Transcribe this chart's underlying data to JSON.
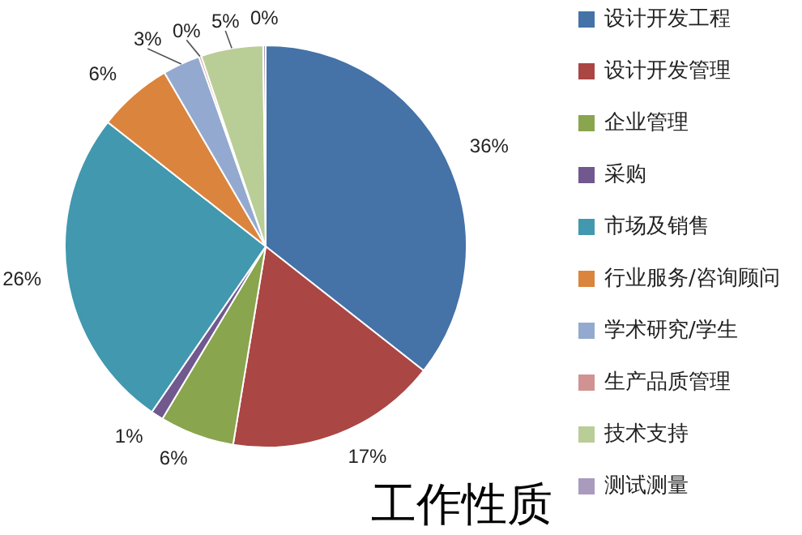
{
  "chart_data": {
    "type": "pie",
    "title": "工作性质",
    "categories": [
      "设计开发工程",
      "设计开发管理",
      "企业管理",
      "采购",
      "市场及销售",
      "行业服务/咨询顾问",
      "学术研究/学生",
      "生产品质管理",
      "技术支持",
      "测试测量"
    ],
    "values": [
      35.6,
      17,
      6,
      1,
      26,
      6,
      3,
      0.2,
      5,
      0.2
    ],
    "value_labels": [
      "36%",
      "17%",
      "6%",
      "1%",
      "26%",
      "6%",
      "3%",
      "0%",
      "5%",
      "0%"
    ],
    "colors": [
      "#4572a7",
      "#aa4643",
      "#89a54e",
      "#71588f",
      "#4198af",
      "#db843d",
      "#93a9cf",
      "#d19392",
      "#b9cd96",
      "#a99bbd"
    ],
    "legend": "right"
  }
}
